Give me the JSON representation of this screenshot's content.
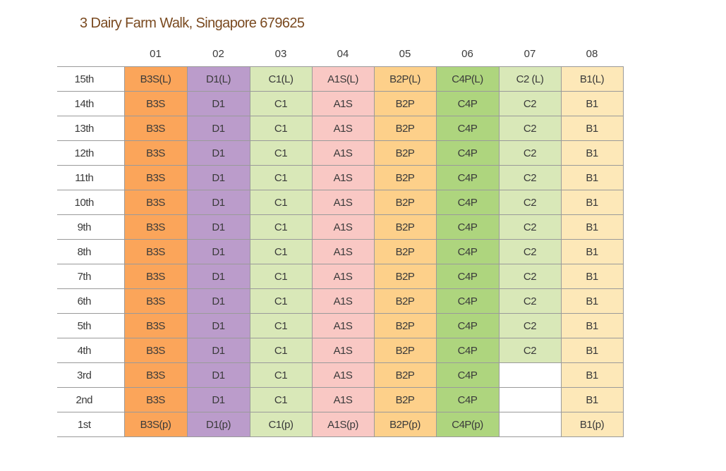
{
  "title": "3 Dairy Farm Walk, Singapore 679625",
  "units": [
    "01",
    "02",
    "03",
    "04",
    "05",
    "06",
    "07",
    "08"
  ],
  "unit_colors": [
    "#fba55a",
    "#bb9ccb",
    "#d9e8b8",
    "#f9c8c4",
    "#fdd08a",
    "#aed57e",
    "#d9e8b8",
    "#fde8b8"
  ],
  "rows": [
    {
      "floor": "15th",
      "cells": [
        "B3S(L)",
        "D1(L)",
        "C1(L)",
        "A1S(L)",
        "B2P(L)",
        "C4P(L)",
        "C2 (L)",
        "B1(L)"
      ]
    },
    {
      "floor": "14th",
      "cells": [
        "B3S",
        "D1",
        "C1",
        "A1S",
        "B2P",
        "C4P",
        "C2",
        "B1"
      ]
    },
    {
      "floor": "13th",
      "cells": [
        "B3S",
        "D1",
        "C1",
        "A1S",
        "B2P",
        "C4P",
        "C2",
        "B1"
      ]
    },
    {
      "floor": "12th",
      "cells": [
        "B3S",
        "D1",
        "C1",
        "A1S",
        "B2P",
        "C4P",
        "C2",
        "B1"
      ]
    },
    {
      "floor": "11th",
      "cells": [
        "B3S",
        "D1",
        "C1",
        "A1S",
        "B2P",
        "C4P",
        "C2",
        "B1"
      ]
    },
    {
      "floor": "10th",
      "cells": [
        "B3S",
        "D1",
        "C1",
        "A1S",
        "B2P",
        "C4P",
        "C2",
        "B1"
      ]
    },
    {
      "floor": "9th",
      "cells": [
        "B3S",
        "D1",
        "C1",
        "A1S",
        "B2P",
        "C4P",
        "C2",
        "B1"
      ]
    },
    {
      "floor": "8th",
      "cells": [
        "B3S",
        "D1",
        "C1",
        "A1S",
        "B2P",
        "C4P",
        "C2",
        "B1"
      ]
    },
    {
      "floor": "7th",
      "cells": [
        "B3S",
        "D1",
        "C1",
        "A1S",
        "B2P",
        "C4P",
        "C2",
        "B1"
      ]
    },
    {
      "floor": "6th",
      "cells": [
        "B3S",
        "D1",
        "C1",
        "A1S",
        "B2P",
        "C4P",
        "C2",
        "B1"
      ]
    },
    {
      "floor": "5th",
      "cells": [
        "B3S",
        "D1",
        "C1",
        "A1S",
        "B2P",
        "C4P",
        "C2",
        "B1"
      ]
    },
    {
      "floor": "4th",
      "cells": [
        "B3S",
        "D1",
        "C1",
        "A1S",
        "B2P",
        "C4P",
        "C2",
        "B1"
      ]
    },
    {
      "floor": "3rd",
      "cells": [
        "B3S",
        "D1",
        "C1",
        "A1S",
        "B2P",
        "C4P",
        null,
        "B1"
      ]
    },
    {
      "floor": "2nd",
      "cells": [
        "B3S",
        "D1",
        "C1",
        "A1S",
        "B2P",
        "C4P",
        null,
        "B1"
      ]
    },
    {
      "floor": "1st",
      "cells": [
        "B3S(p)",
        "D1(p)",
        "C1(p)",
        "A1S(p)",
        "B2P(p)",
        "C4P(p)",
        null,
        "B1(p)"
      ]
    }
  ]
}
